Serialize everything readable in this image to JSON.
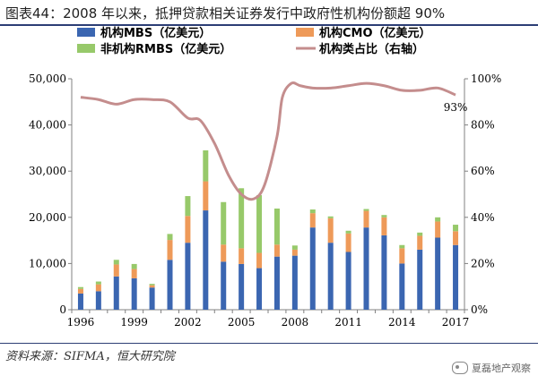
{
  "header": {
    "title": "图表44：2008 年以来，抵押贷款相关证券发行中政府性机构份额超 90%"
  },
  "footer": {
    "source": "资料来源：SIFMA，恒大研究院",
    "watermark": "夏磊地产观察"
  },
  "colors": {
    "mbs": "#3b66b1",
    "cmo": "#ee9a59",
    "rmbs": "#97c96a",
    "ratio_line": "#c48d8d",
    "axis": "#808080"
  },
  "chart_data": {
    "type": "bar",
    "stacked": true,
    "categories": [
      "1996",
      "1997",
      "1998",
      "1999",
      "2000",
      "2001",
      "2002",
      "2003",
      "2004",
      "2005",
      "2006",
      "2007",
      "2008",
      "2009",
      "2010",
      "2011",
      "2012",
      "2013",
      "2014",
      "2015",
      "2016",
      "2017"
    ],
    "x_tick_labels": [
      "1996",
      "1999",
      "2002",
      "2005",
      "2008",
      "2011",
      "2014",
      "2017"
    ],
    "series": [
      {
        "name": "机构MBS（亿美元）",
        "values": [
          3500,
          4000,
          7200,
          6800,
          4800,
          10800,
          14500,
          21500,
          10400,
          9900,
          9000,
          11500,
          11700,
          17800,
          14500,
          12500,
          17800,
          16100,
          10000,
          13000,
          15600,
          14000
        ]
      },
      {
        "name": "机构CMO（亿美元）",
        "values": [
          1000,
          1500,
          2600,
          2000,
          500,
          4300,
          5800,
          6300,
          3700,
          3400,
          3300,
          2600,
          1300,
          3100,
          5300,
          4000,
          3600,
          3900,
          3300,
          3000,
          3500,
          3000
        ]
      },
      {
        "name": "非机构RMBS（亿美元）",
        "values": [
          400,
          600,
          1000,
          1100,
          300,
          1300,
          4300,
          6700,
          9200,
          13000,
          12500,
          7800,
          900,
          800,
          400,
          600,
          400,
          500,
          700,
          700,
          900,
          1400
        ]
      },
      {
        "name": "机构类占比（右轴）",
        "axis": "right",
        "type": "line",
        "x": [
          1996,
          1997,
          1998,
          1999,
          2000,
          2001,
          2002,
          2002.7,
          2003.5,
          2004.3,
          2005,
          2005.7,
          2006.3,
          2007,
          2007.3,
          2007.8,
          2008.3,
          2009,
          2010,
          2011,
          2012,
          2013,
          2014,
          2015,
          2016,
          2017
        ],
        "values": [
          92,
          91,
          89,
          91,
          91,
          90,
          83,
          82,
          72,
          58,
          50,
          48,
          54,
          75,
          92,
          98,
          97,
          96,
          96,
          97,
          98,
          97,
          95,
          95,
          96,
          93
        ]
      }
    ],
    "ylim": [
      0,
      50000
    ],
    "y_ticks": [
      "0",
      "10,000",
      "20,000",
      "30,000",
      "40,000",
      "50,000"
    ],
    "y2lim": [
      0,
      100
    ],
    "y2_ticks": [
      "0%",
      "20%",
      "40%",
      "60%",
      "80%",
      "100%"
    ],
    "annotation": "93%",
    "legend_placement": "top-left",
    "grid": false
  }
}
